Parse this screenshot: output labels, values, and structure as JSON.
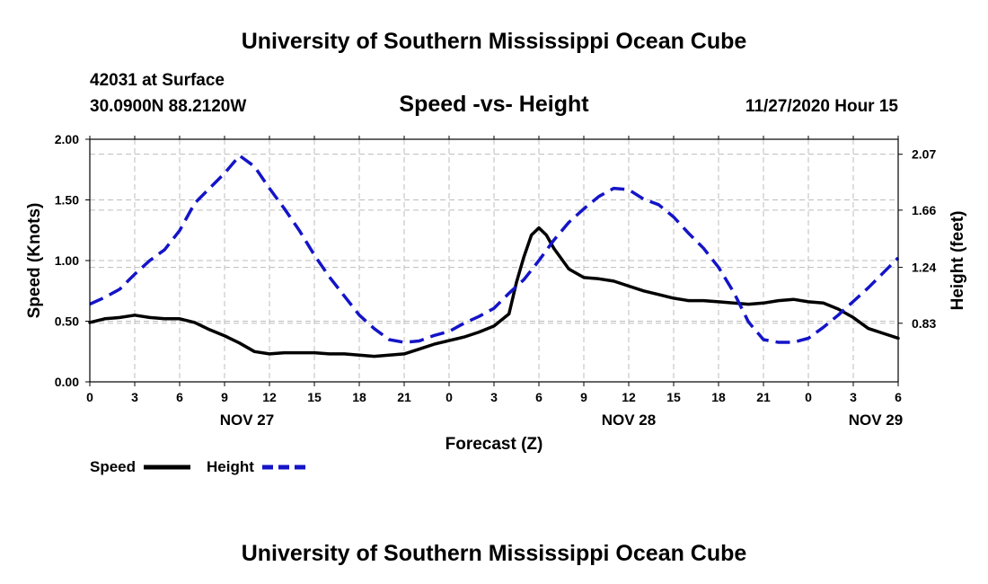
{
  "header": {
    "title": "University of Southern Mississippi Ocean Cube",
    "station": "42031 at Surface",
    "coords": "30.0900N 88.2120W",
    "datetime": "11/27/2020 Hour 15",
    "footer": "University of Southern Mississippi Ocean Cube"
  },
  "chart_data": {
    "type": "line",
    "title": "Speed -vs- Height",
    "xlabel": "Forecast (Z)",
    "ylabel": "Speed (Knots)",
    "y2label": "Height (feet)",
    "xlim": [
      0,
      54
    ],
    "ylim": [
      0,
      2.0
    ],
    "y2lim": [
      0.4,
      2.18
    ],
    "grid": true,
    "x_ticks": [
      0,
      3,
      6,
      9,
      12,
      15,
      18,
      21,
      24,
      27,
      30,
      33,
      36,
      39,
      42,
      45,
      48,
      51,
      54
    ],
    "x_tick_labels": [
      "0",
      "3",
      "6",
      "9",
      "12",
      "15",
      "18",
      "21",
      "0",
      "3",
      "6",
      "9",
      "12",
      "15",
      "18",
      "21",
      "0",
      "3",
      "6"
    ],
    "y_ticks": [
      0.0,
      0.5,
      1.0,
      1.5,
      2.0
    ],
    "y_tick_labels": [
      "0.00",
      "0.50",
      "1.00",
      "1.50",
      "2.00"
    ],
    "y2_ticks": [
      0.83,
      1.24,
      1.66,
      2.07
    ],
    "y2_tick_labels": [
      "0.83",
      "1.24",
      "1.66",
      "2.07"
    ],
    "day_labels": [
      {
        "x": 10.5,
        "label": "NOV 27"
      },
      {
        "x": 36,
        "label": "NOV 28"
      },
      {
        "x": 52.5,
        "label": "NOV 29"
      }
    ],
    "series": [
      {
        "name": "Speed",
        "axis": "left",
        "color": "#000000",
        "style": "solid",
        "x": [
          0,
          1,
          2,
          3,
          4,
          5,
          6,
          7,
          8,
          9,
          10,
          11,
          12,
          13,
          14,
          15,
          16,
          17,
          18,
          19,
          20,
          21,
          22,
          23,
          24,
          25,
          26,
          27,
          28,
          28.5,
          29,
          29.5,
          30,
          30.5,
          31,
          32,
          33,
          34,
          35,
          36,
          37,
          38,
          39,
          40,
          41,
          42,
          43,
          44,
          45,
          46,
          47,
          48,
          49,
          50,
          51,
          52,
          53,
          54
        ],
        "values": [
          0.49,
          0.52,
          0.53,
          0.55,
          0.53,
          0.52,
          0.52,
          0.49,
          0.43,
          0.38,
          0.32,
          0.25,
          0.23,
          0.24,
          0.24,
          0.24,
          0.23,
          0.23,
          0.22,
          0.21,
          0.22,
          0.23,
          0.27,
          0.31,
          0.34,
          0.37,
          0.41,
          0.46,
          0.56,
          0.82,
          1.03,
          1.21,
          1.27,
          1.21,
          1.1,
          0.93,
          0.86,
          0.85,
          0.83,
          0.79,
          0.75,
          0.72,
          0.69,
          0.67,
          0.67,
          0.66,
          0.65,
          0.64,
          0.65,
          0.67,
          0.68,
          0.66,
          0.65,
          0.6,
          0.53,
          0.44,
          0.4,
          0.36
        ]
      },
      {
        "name": "Height",
        "axis": "right",
        "color": "#1414c8",
        "style": "dashed",
        "x": [
          0,
          1,
          2,
          3,
          4,
          5,
          6,
          7,
          8,
          9,
          10,
          11,
          12,
          13,
          14,
          15,
          16,
          17,
          18,
          19,
          20,
          21,
          22,
          23,
          24,
          25,
          26,
          27,
          28,
          29,
          30,
          31,
          32,
          33,
          34,
          35,
          36,
          37,
          38,
          39,
          40,
          41,
          42,
          43,
          44,
          45,
          46,
          47,
          48,
          49,
          50,
          51,
          52,
          53,
          54
        ],
        "values": [
          0.97,
          1.02,
          1.08,
          1.19,
          1.29,
          1.37,
          1.51,
          1.71,
          1.82,
          1.93,
          2.06,
          1.98,
          1.82,
          1.67,
          1.51,
          1.33,
          1.17,
          1.03,
          0.89,
          0.79,
          0.71,
          0.69,
          0.7,
          0.74,
          0.77,
          0.83,
          0.88,
          0.94,
          1.05,
          1.15,
          1.29,
          1.44,
          1.57,
          1.67,
          1.76,
          1.82,
          1.81,
          1.74,
          1.7,
          1.61,
          1.49,
          1.38,
          1.24,
          1.06,
          0.84,
          0.71,
          0.69,
          0.69,
          0.72,
          0.8,
          0.89,
          0.99,
          1.09,
          1.2,
          1.31
        ]
      }
    ],
    "legend": [
      {
        "label": "Speed",
        "color": "#000000",
        "style": "solid"
      },
      {
        "label": "Height",
        "color": "#1414c8",
        "style": "dashed"
      }
    ]
  }
}
